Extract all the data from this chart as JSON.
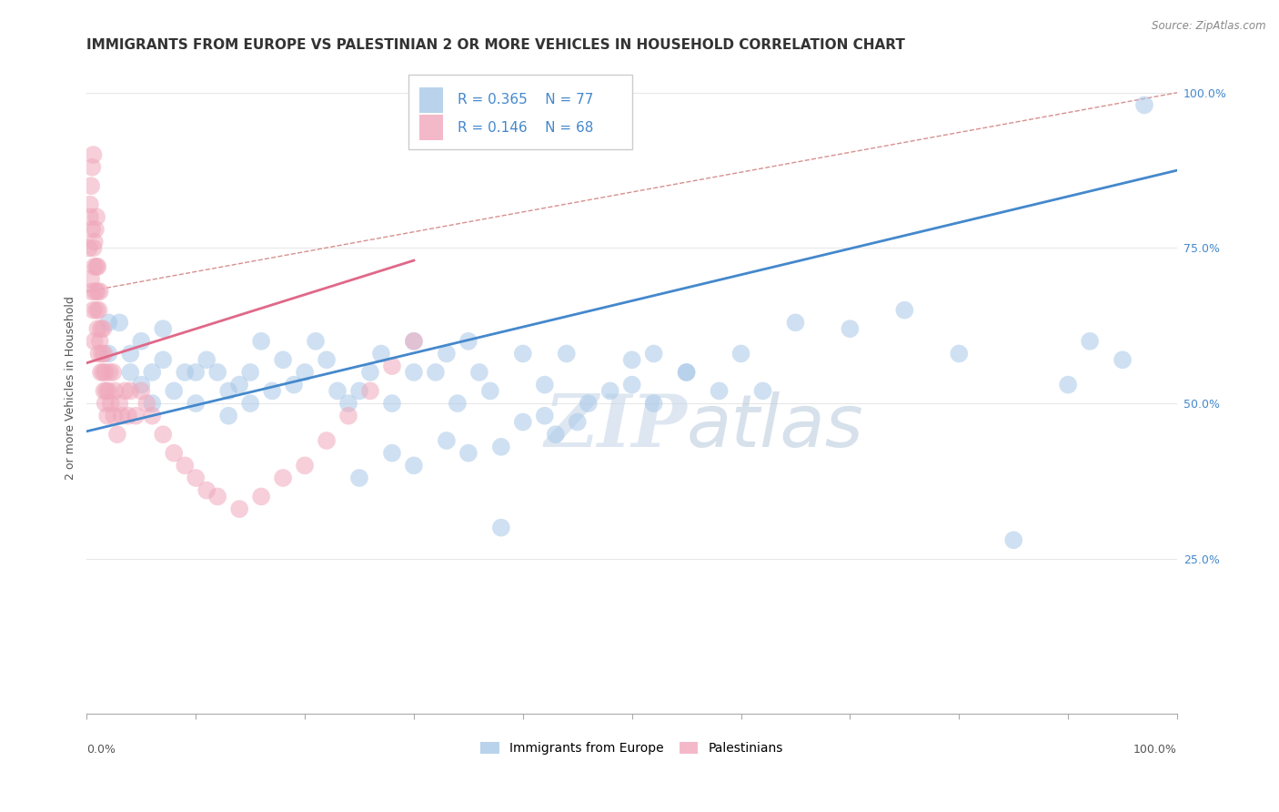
{
  "title": "IMMIGRANTS FROM EUROPE VS PALESTINIAN 2 OR MORE VEHICLES IN HOUSEHOLD CORRELATION CHART",
  "source": "Source: ZipAtlas.com",
  "ylabel": "2 or more Vehicles in Household",
  "xlim": [
    0.0,
    1.0
  ],
  "ylim": [
    0.0,
    1.05
  ],
  "xtick_minor_positions": [
    0.0,
    0.1,
    0.2,
    0.3,
    0.4,
    0.5,
    0.6,
    0.7,
    0.8,
    0.9,
    1.0
  ],
  "xtick_label_positions": [
    0.0,
    1.0
  ],
  "xtick_labels": [
    "0.0%",
    "100.0%"
  ],
  "ytick_positions": [
    0.25,
    0.5,
    0.75,
    1.0
  ],
  "ytick_labels": [
    "25.0%",
    "50.0%",
    "75.0%",
    "100.0%"
  ],
  "legend_labels": [
    "Immigrants from Europe",
    "Palestinians"
  ],
  "legend_R_blue": "R = 0.365",
  "legend_N_blue": "N = 77",
  "legend_R_pink": "R = 0.146",
  "legend_N_pink": "N = 68",
  "blue_color": "#a8c8e8",
  "pink_color": "#f0a8bc",
  "blue_line_color": "#4488cc",
  "pink_line_color": "#e06888",
  "dashed_line_color": "#d89090",
  "blue_points_x": [
    0.02,
    0.02,
    0.03,
    0.04,
    0.04,
    0.05,
    0.05,
    0.06,
    0.06,
    0.07,
    0.07,
    0.08,
    0.09,
    0.1,
    0.1,
    0.11,
    0.12,
    0.13,
    0.13,
    0.14,
    0.15,
    0.15,
    0.16,
    0.17,
    0.18,
    0.19,
    0.2,
    0.21,
    0.22,
    0.23,
    0.24,
    0.25,
    0.26,
    0.27,
    0.28,
    0.3,
    0.3,
    0.32,
    0.33,
    0.34,
    0.35,
    0.36,
    0.37,
    0.38,
    0.4,
    0.42,
    0.44,
    0.46,
    0.5,
    0.52,
    0.55,
    0.42,
    0.45,
    0.48,
    0.5,
    0.52,
    0.55,
    0.58,
    0.6,
    0.62,
    0.65,
    0.7,
    0.75,
    0.8,
    0.85,
    0.9,
    0.92,
    0.95,
    0.97,
    0.4,
    0.43,
    0.38,
    0.35,
    0.33,
    0.3,
    0.28,
    0.25
  ],
  "blue_points_y": [
    0.63,
    0.58,
    0.63,
    0.58,
    0.55,
    0.6,
    0.53,
    0.55,
    0.5,
    0.62,
    0.57,
    0.52,
    0.55,
    0.55,
    0.5,
    0.57,
    0.55,
    0.52,
    0.48,
    0.53,
    0.55,
    0.5,
    0.6,
    0.52,
    0.57,
    0.53,
    0.55,
    0.6,
    0.57,
    0.52,
    0.5,
    0.52,
    0.55,
    0.58,
    0.5,
    0.55,
    0.6,
    0.55,
    0.58,
    0.5,
    0.6,
    0.55,
    0.52,
    0.3,
    0.58,
    0.53,
    0.58,
    0.5,
    0.57,
    0.58,
    0.55,
    0.48,
    0.47,
    0.52,
    0.53,
    0.5,
    0.55,
    0.52,
    0.58,
    0.52,
    0.63,
    0.62,
    0.65,
    0.58,
    0.28,
    0.53,
    0.6,
    0.57,
    0.98,
    0.47,
    0.45,
    0.43,
    0.42,
    0.44,
    0.4,
    0.42,
    0.38
  ],
  "pink_points_x": [
    0.002,
    0.003,
    0.004,
    0.005,
    0.005,
    0.006,
    0.006,
    0.007,
    0.007,
    0.008,
    0.009,
    0.009,
    0.01,
    0.01,
    0.011,
    0.011,
    0.012,
    0.012,
    0.013,
    0.013,
    0.014,
    0.015,
    0.015,
    0.016,
    0.016,
    0.017,
    0.017,
    0.018,
    0.019,
    0.02,
    0.021,
    0.022,
    0.024,
    0.025,
    0.026,
    0.028,
    0.03,
    0.032,
    0.035,
    0.038,
    0.04,
    0.045,
    0.05,
    0.055,
    0.06,
    0.07,
    0.08,
    0.09,
    0.1,
    0.11,
    0.12,
    0.14,
    0.16,
    0.18,
    0.2,
    0.22,
    0.24,
    0.26,
    0.28,
    0.3,
    0.003,
    0.004,
    0.005,
    0.006,
    0.007,
    0.008,
    0.009,
    0.01
  ],
  "pink_points_y": [
    0.75,
    0.82,
    0.7,
    0.78,
    0.68,
    0.75,
    0.65,
    0.72,
    0.6,
    0.68,
    0.65,
    0.72,
    0.62,
    0.68,
    0.58,
    0.65,
    0.6,
    0.68,
    0.55,
    0.62,
    0.58,
    0.55,
    0.62,
    0.52,
    0.58,
    0.5,
    0.55,
    0.52,
    0.48,
    0.52,
    0.55,
    0.5,
    0.55,
    0.48,
    0.52,
    0.45,
    0.5,
    0.48,
    0.52,
    0.48,
    0.52,
    0.48,
    0.52,
    0.5,
    0.48,
    0.45,
    0.42,
    0.4,
    0.38,
    0.36,
    0.35,
    0.33,
    0.35,
    0.38,
    0.4,
    0.44,
    0.48,
    0.52,
    0.56,
    0.6,
    0.8,
    0.85,
    0.88,
    0.9,
    0.76,
    0.78,
    0.8,
    0.72
  ],
  "blue_trend_x": [
    0.0,
    1.0
  ],
  "blue_trend_y": [
    0.455,
    0.875
  ],
  "pink_trend_x": [
    0.0,
    0.3
  ],
  "pink_trend_y": [
    0.565,
    0.73
  ],
  "dashed_trend_x": [
    0.0,
    1.0
  ],
  "dashed_trend_y": [
    0.68,
    1.0
  ],
  "watermark_zip": "ZIP",
  "watermark_atlas": "atlas",
  "background_color": "#ffffff",
  "grid_color": "#e8e8e8",
  "title_fontsize": 11,
  "axis_label_fontsize": 9,
  "tick_fontsize": 9,
  "legend_fontsize": 11
}
